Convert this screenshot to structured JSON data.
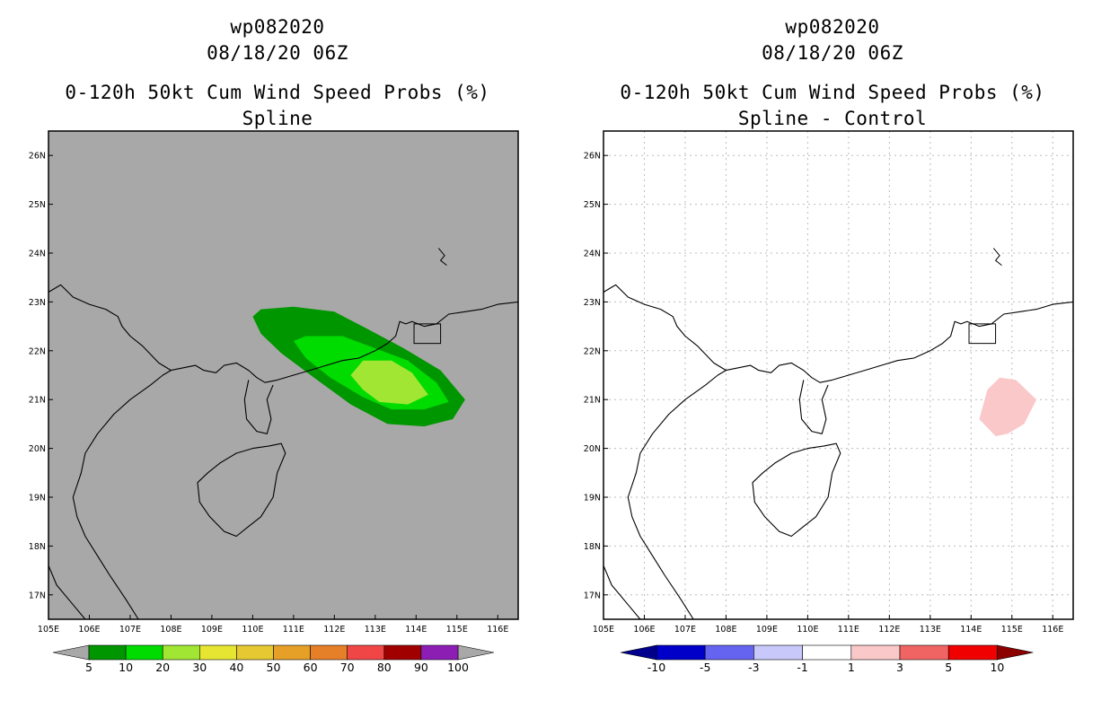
{
  "chart_data": [
    {
      "type": "contour-map",
      "storm_id": "wp082020",
      "datetime": "08/18/20 06Z",
      "title": "0-120h 50kt Cum Wind Speed Probs (%)",
      "subtitle": "Spline",
      "lon_range": [
        105,
        116.5
      ],
      "lat_range": [
        16.5,
        26.5
      ],
      "lon_ticks": [
        "105E",
        "106E",
        "107E",
        "108E",
        "109E",
        "110E",
        "111E",
        "112E",
        "113E",
        "114E",
        "115E",
        "116E"
      ],
      "lat_ticks": [
        "17N",
        "18N",
        "19N",
        "20N",
        "21N",
        "22N",
        "23N",
        "24N",
        "25N",
        "26N"
      ],
      "background_color": "#a8a8a8",
      "contours": [
        {
          "level": 5,
          "color": "#009600",
          "polygon_lonlat": [
            [
              110.0,
              22.7
            ],
            [
              110.2,
              22.85
            ],
            [
              111.0,
              22.9
            ],
            [
              112.0,
              22.8
            ],
            [
              112.8,
              22.45
            ],
            [
              113.7,
              22.05
            ],
            [
              114.6,
              21.6
            ],
            [
              115.2,
              21.0
            ],
            [
              114.9,
              20.6
            ],
            [
              114.2,
              20.45
            ],
            [
              113.3,
              20.5
            ],
            [
              112.4,
              20.9
            ],
            [
              111.5,
              21.45
            ],
            [
              110.7,
              21.95
            ],
            [
              110.2,
              22.35
            ]
          ]
        },
        {
          "level": 10,
          "color": "#00dc00",
          "polygon_lonlat": [
            [
              111.0,
              22.2
            ],
            [
              111.3,
              22.3
            ],
            [
              112.2,
              22.3
            ],
            [
              113.0,
              22.05
            ],
            [
              113.8,
              21.8
            ],
            [
              114.5,
              21.35
            ],
            [
              114.8,
              20.95
            ],
            [
              114.2,
              20.8
            ],
            [
              113.4,
              20.8
            ],
            [
              112.7,
              21.05
            ],
            [
              111.9,
              21.45
            ],
            [
              111.3,
              21.85
            ]
          ]
        },
        {
          "level": 20,
          "color": "#a0e632",
          "polygon_lonlat": [
            [
              112.4,
              21.5
            ],
            [
              112.7,
              21.8
            ],
            [
              113.4,
              21.8
            ],
            [
              113.9,
              21.55
            ],
            [
              114.3,
              21.1
            ],
            [
              113.8,
              20.9
            ],
            [
              113.1,
              20.95
            ],
            [
              112.7,
              21.2
            ]
          ]
        }
      ],
      "colorbar": {
        "levels": [
          "5",
          "10",
          "20",
          "30",
          "40",
          "50",
          "60",
          "70",
          "80",
          "90",
          "100"
        ],
        "colors": [
          "#009600",
          "#00dc00",
          "#a0e632",
          "#e6e632",
          "#e6c832",
          "#e6a028",
          "#e68028",
          "#f04646",
          "#a00000",
          "#8c1eb4"
        ],
        "extend_colors": [
          "#a8a8a8",
          "#a8a8a8"
        ]
      }
    },
    {
      "type": "contour-map",
      "storm_id": "wp082020",
      "datetime": "08/18/20 06Z",
      "title": "0-120h 50kt Cum Wind Speed Probs (%)",
      "subtitle": "Spline - Control",
      "lon_range": [
        105,
        116.5
      ],
      "lat_range": [
        16.5,
        26.5
      ],
      "lon_ticks": [
        "105E",
        "106E",
        "107E",
        "108E",
        "109E",
        "110E",
        "111E",
        "112E",
        "113E",
        "114E",
        "115E",
        "116E"
      ],
      "lat_ticks": [
        "17N",
        "18N",
        "19N",
        "20N",
        "21N",
        "22N",
        "23N",
        "24N",
        "25N",
        "26N"
      ],
      "background_color": "#ffffff",
      "grid": true,
      "contours": [
        {
          "level": 1,
          "color": "#fac8c8",
          "polygon_lonlat": [
            [
              114.2,
              20.6
            ],
            [
              114.4,
              21.2
            ],
            [
              114.7,
              21.45
            ],
            [
              115.1,
              21.4
            ],
            [
              115.6,
              21.0
            ],
            [
              115.3,
              20.5
            ],
            [
              114.9,
              20.3
            ],
            [
              114.6,
              20.25
            ]
          ]
        }
      ],
      "colorbar": {
        "levels": [
          "-10",
          "-5",
          "-3",
          "-1",
          "1",
          "3",
          "5",
          "10"
        ],
        "colors": [
          "#0000c8",
          "#6464f0",
          "#c8c8fa",
          "#ffffff",
          "#fac8c8",
          "#f06464",
          "#f00000"
        ],
        "extend_colors": [
          "#00008c",
          "#8c0000"
        ]
      }
    }
  ],
  "coastline_lonlat": [
    [
      105.0,
      23.2
    ],
    [
      105.3,
      23.35
    ],
    [
      105.6,
      23.1
    ],
    [
      106.0,
      22.95
    ],
    [
      106.4,
      22.85
    ],
    [
      106.7,
      22.7
    ],
    [
      106.8,
      22.5
    ],
    [
      107.0,
      22.3
    ],
    [
      107.3,
      22.1
    ],
    [
      107.7,
      21.75
    ],
    [
      108.0,
      21.6
    ],
    [
      108.3,
      21.65
    ],
    [
      108.6,
      21.7
    ],
    [
      108.8,
      21.6
    ],
    [
      109.1,
      21.55
    ],
    [
      109.3,
      21.7
    ],
    [
      109.6,
      21.75
    ],
    [
      109.9,
      21.6
    ],
    [
      110.1,
      21.45
    ],
    [
      110.3,
      21.35
    ],
    [
      110.6,
      21.4
    ],
    [
      111.0,
      21.5
    ],
    [
      111.4,
      21.6
    ],
    [
      111.8,
      21.7
    ],
    [
      112.2,
      21.8
    ],
    [
      112.6,
      21.85
    ],
    [
      113.0,
      22.0
    ],
    [
      113.3,
      22.15
    ],
    [
      113.5,
      22.3
    ],
    [
      113.6,
      22.6
    ],
    [
      113.75,
      22.55
    ],
    [
      113.9,
      22.6
    ],
    [
      114.2,
      22.5
    ],
    [
      114.5,
      22.55
    ],
    [
      114.8,
      22.75
    ],
    [
      115.2,
      22.8
    ],
    [
      115.6,
      22.85
    ],
    [
      116.0,
      22.95
    ],
    [
      116.5,
      23.0
    ]
  ],
  "leizhou_lonlat": [
    [
      109.9,
      21.4
    ],
    [
      109.8,
      21.0
    ],
    [
      109.85,
      20.6
    ],
    [
      110.1,
      20.35
    ],
    [
      110.35,
      20.3
    ],
    [
      110.45,
      20.6
    ],
    [
      110.35,
      21.0
    ],
    [
      110.5,
      21.3
    ]
  ],
  "hainan_lonlat": [
    [
      108.65,
      19.3
    ],
    [
      108.7,
      18.9
    ],
    [
      108.95,
      18.6
    ],
    [
      109.3,
      18.3
    ],
    [
      109.6,
      18.2
    ],
    [
      109.9,
      18.4
    ],
    [
      110.2,
      18.6
    ],
    [
      110.5,
      19.0
    ],
    [
      110.6,
      19.5
    ],
    [
      110.8,
      19.9
    ],
    [
      110.7,
      20.1
    ],
    [
      110.4,
      20.05
    ],
    [
      110.0,
      20.0
    ],
    [
      109.6,
      19.9
    ],
    [
      109.2,
      19.7
    ],
    [
      108.9,
      19.5
    ]
  ],
  "vietnam_coast_lonlat": [
    [
      108.0,
      21.6
    ],
    [
      107.8,
      21.5
    ],
    [
      107.5,
      21.3
    ],
    [
      107.0,
      21.0
    ],
    [
      106.6,
      20.7
    ],
    [
      106.2,
      20.3
    ],
    [
      105.9,
      19.9
    ],
    [
      105.8,
      19.5
    ],
    [
      105.6,
      19.0
    ],
    [
      105.7,
      18.6
    ],
    [
      105.9,
      18.2
    ],
    [
      106.2,
      17.8
    ],
    [
      106.5,
      17.4
    ],
    [
      106.9,
      16.9
    ],
    [
      107.2,
      16.5
    ]
  ],
  "laos_border_lonlat": [
    [
      105.0,
      17.6
    ],
    [
      105.2,
      17.2
    ],
    [
      105.6,
      16.8
    ],
    [
      105.9,
      16.5
    ]
  ]
}
